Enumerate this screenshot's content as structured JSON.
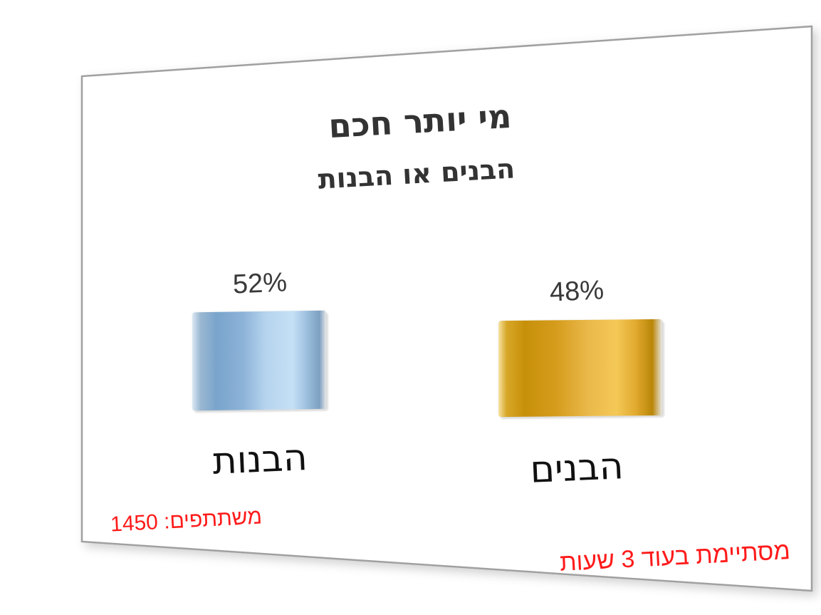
{
  "poll": {
    "title": "מי יותר חכם",
    "subtitle": "הבנים או הבנות",
    "options": [
      {
        "label": "הבנות",
        "percent_text": "52%",
        "percent": 52,
        "color": "#8db3d8"
      },
      {
        "label": "הבנים",
        "percent_text": "48%",
        "percent": 48,
        "color": "#d59c1c"
      }
    ],
    "participants_label": "משתתפים:",
    "participants_count": "1450",
    "ends_text": "מסתיימת בעוד 3 שעות"
  },
  "colors": {
    "status_text": "#ff1a1a",
    "title_text": "#333333",
    "frame": "#a0a0a0"
  }
}
